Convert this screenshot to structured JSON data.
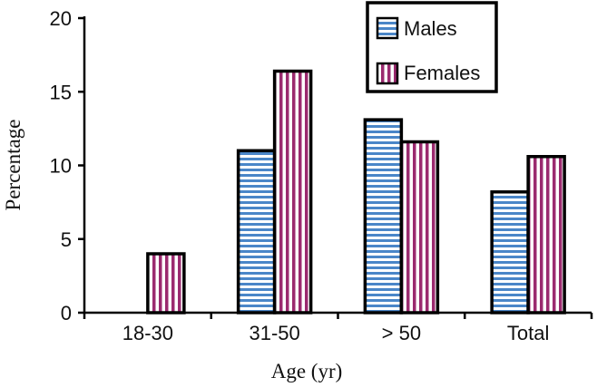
{
  "chart_data": {
    "type": "bar",
    "title": "",
    "xlabel": "Age (yr)",
    "ylabel": "Percentage",
    "ylim": [
      0,
      20
    ],
    "yticks": [
      0,
      5,
      10,
      15,
      20
    ],
    "categories": [
      "18-30",
      "31-50",
      "> 50",
      "Total"
    ],
    "series": [
      {
        "name": "Males",
        "values": [
          0,
          11,
          13.1,
          8.2
        ],
        "pattern": "horizontal-stripes",
        "color": "#4a86c8"
      },
      {
        "name": "Females",
        "values": [
          4,
          16.4,
          11.6,
          10.6
        ],
        "pattern": "vertical-stripes",
        "color": "#9b2a6f"
      }
    ],
    "legend_position": "top-right",
    "grid": false
  }
}
